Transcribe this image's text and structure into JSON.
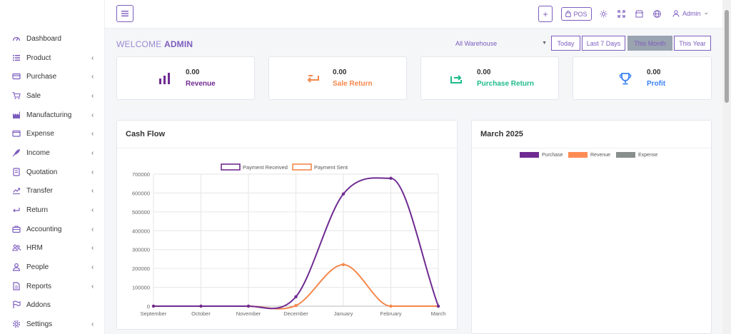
{
  "sidebar": {
    "items": [
      {
        "label": "Dashboard",
        "icon": "gauge-icon",
        "chevron": false
      },
      {
        "label": "Product",
        "icon": "list-icon",
        "chevron": true
      },
      {
        "label": "Purchase",
        "icon": "card-icon",
        "chevron": true
      },
      {
        "label": "Sale",
        "icon": "cart-icon",
        "chevron": true
      },
      {
        "label": "Manufacturing",
        "icon": "factory-icon",
        "chevron": true
      },
      {
        "label": "Expense",
        "icon": "wallet-icon",
        "chevron": true
      },
      {
        "label": "Income",
        "icon": "rocket-icon",
        "chevron": true
      },
      {
        "label": "Quotation",
        "icon": "document-icon",
        "chevron": true
      },
      {
        "label": "Transfer",
        "icon": "transfer-icon",
        "chevron": true
      },
      {
        "label": "Return",
        "icon": "return-icon",
        "chevron": true
      },
      {
        "label": "Accounting",
        "icon": "briefcase-icon",
        "chevron": true
      },
      {
        "label": "HRM",
        "icon": "users-icon",
        "chevron": true
      },
      {
        "label": "People",
        "icon": "user-icon",
        "chevron": true
      },
      {
        "label": "Reports",
        "icon": "report-icon",
        "chevron": true
      },
      {
        "label": "Addons",
        "icon": "flag-icon",
        "chevron": false
      },
      {
        "label": "Settings",
        "icon": "gear-icon",
        "chevron": true
      }
    ],
    "chevron_glyph": "‹"
  },
  "topbar": {
    "plus_label": "+",
    "pos_label": "POS",
    "user_label": "Admin",
    "user_caret": "⌄"
  },
  "welcome": {
    "prefix": "WELCOME",
    "name": "ADMIN"
  },
  "warehouse": {
    "selected": "All Warehouse",
    "arrow": "▼"
  },
  "ranges": [
    {
      "label": "Today",
      "active": false
    },
    {
      "label": "Last 7 Days",
      "active": false
    },
    {
      "label": "This Month",
      "active": true
    },
    {
      "label": "This Year",
      "active": false
    }
  ],
  "stats": [
    {
      "value": "0.00",
      "label": "Revenue",
      "color": "#6f2b91",
      "icon": "bar-chart-icon"
    },
    {
      "value": "0.00",
      "label": "Sale Return",
      "color": "#f4874b",
      "icon": "return-arrow-icon"
    },
    {
      "value": "0.00",
      "label": "Purchase Return",
      "color": "#1dba8a",
      "icon": "forward-arrow-icon"
    },
    {
      "value": "0.00",
      "label": "Profit",
      "color": "#3b82f6",
      "icon": "trophy-icon"
    }
  ],
  "cashflow": {
    "title": "Cash Flow"
  },
  "monthly": {
    "title": "March 2025",
    "legend": [
      {
        "name": "Purchase",
        "color": "#6f2b91"
      },
      {
        "name": "Revenue",
        "color": "#ff8c55"
      },
      {
        "name": "Expense",
        "color": "#888f8c"
      }
    ]
  },
  "chart_data": {
    "type": "line",
    "x": [
      "September",
      "October",
      "November",
      "December",
      "January",
      "February",
      "March"
    ],
    "y_ticks": [
      0,
      100000,
      200000,
      300000,
      400000,
      500000,
      600000,
      700000
    ],
    "ylim": [
      0,
      700000
    ],
    "grid": true,
    "legend_position": "top",
    "series": [
      {
        "name": "Payment Received",
        "color": "#6f2b91",
        "values": [
          0,
          0,
          0,
          50000,
          595000,
          678000,
          0
        ]
      },
      {
        "name": "Payment Sent",
        "color": "#f4874b",
        "values": [
          0,
          0,
          0,
          3000,
          220000,
          0,
          0
        ]
      }
    ]
  }
}
